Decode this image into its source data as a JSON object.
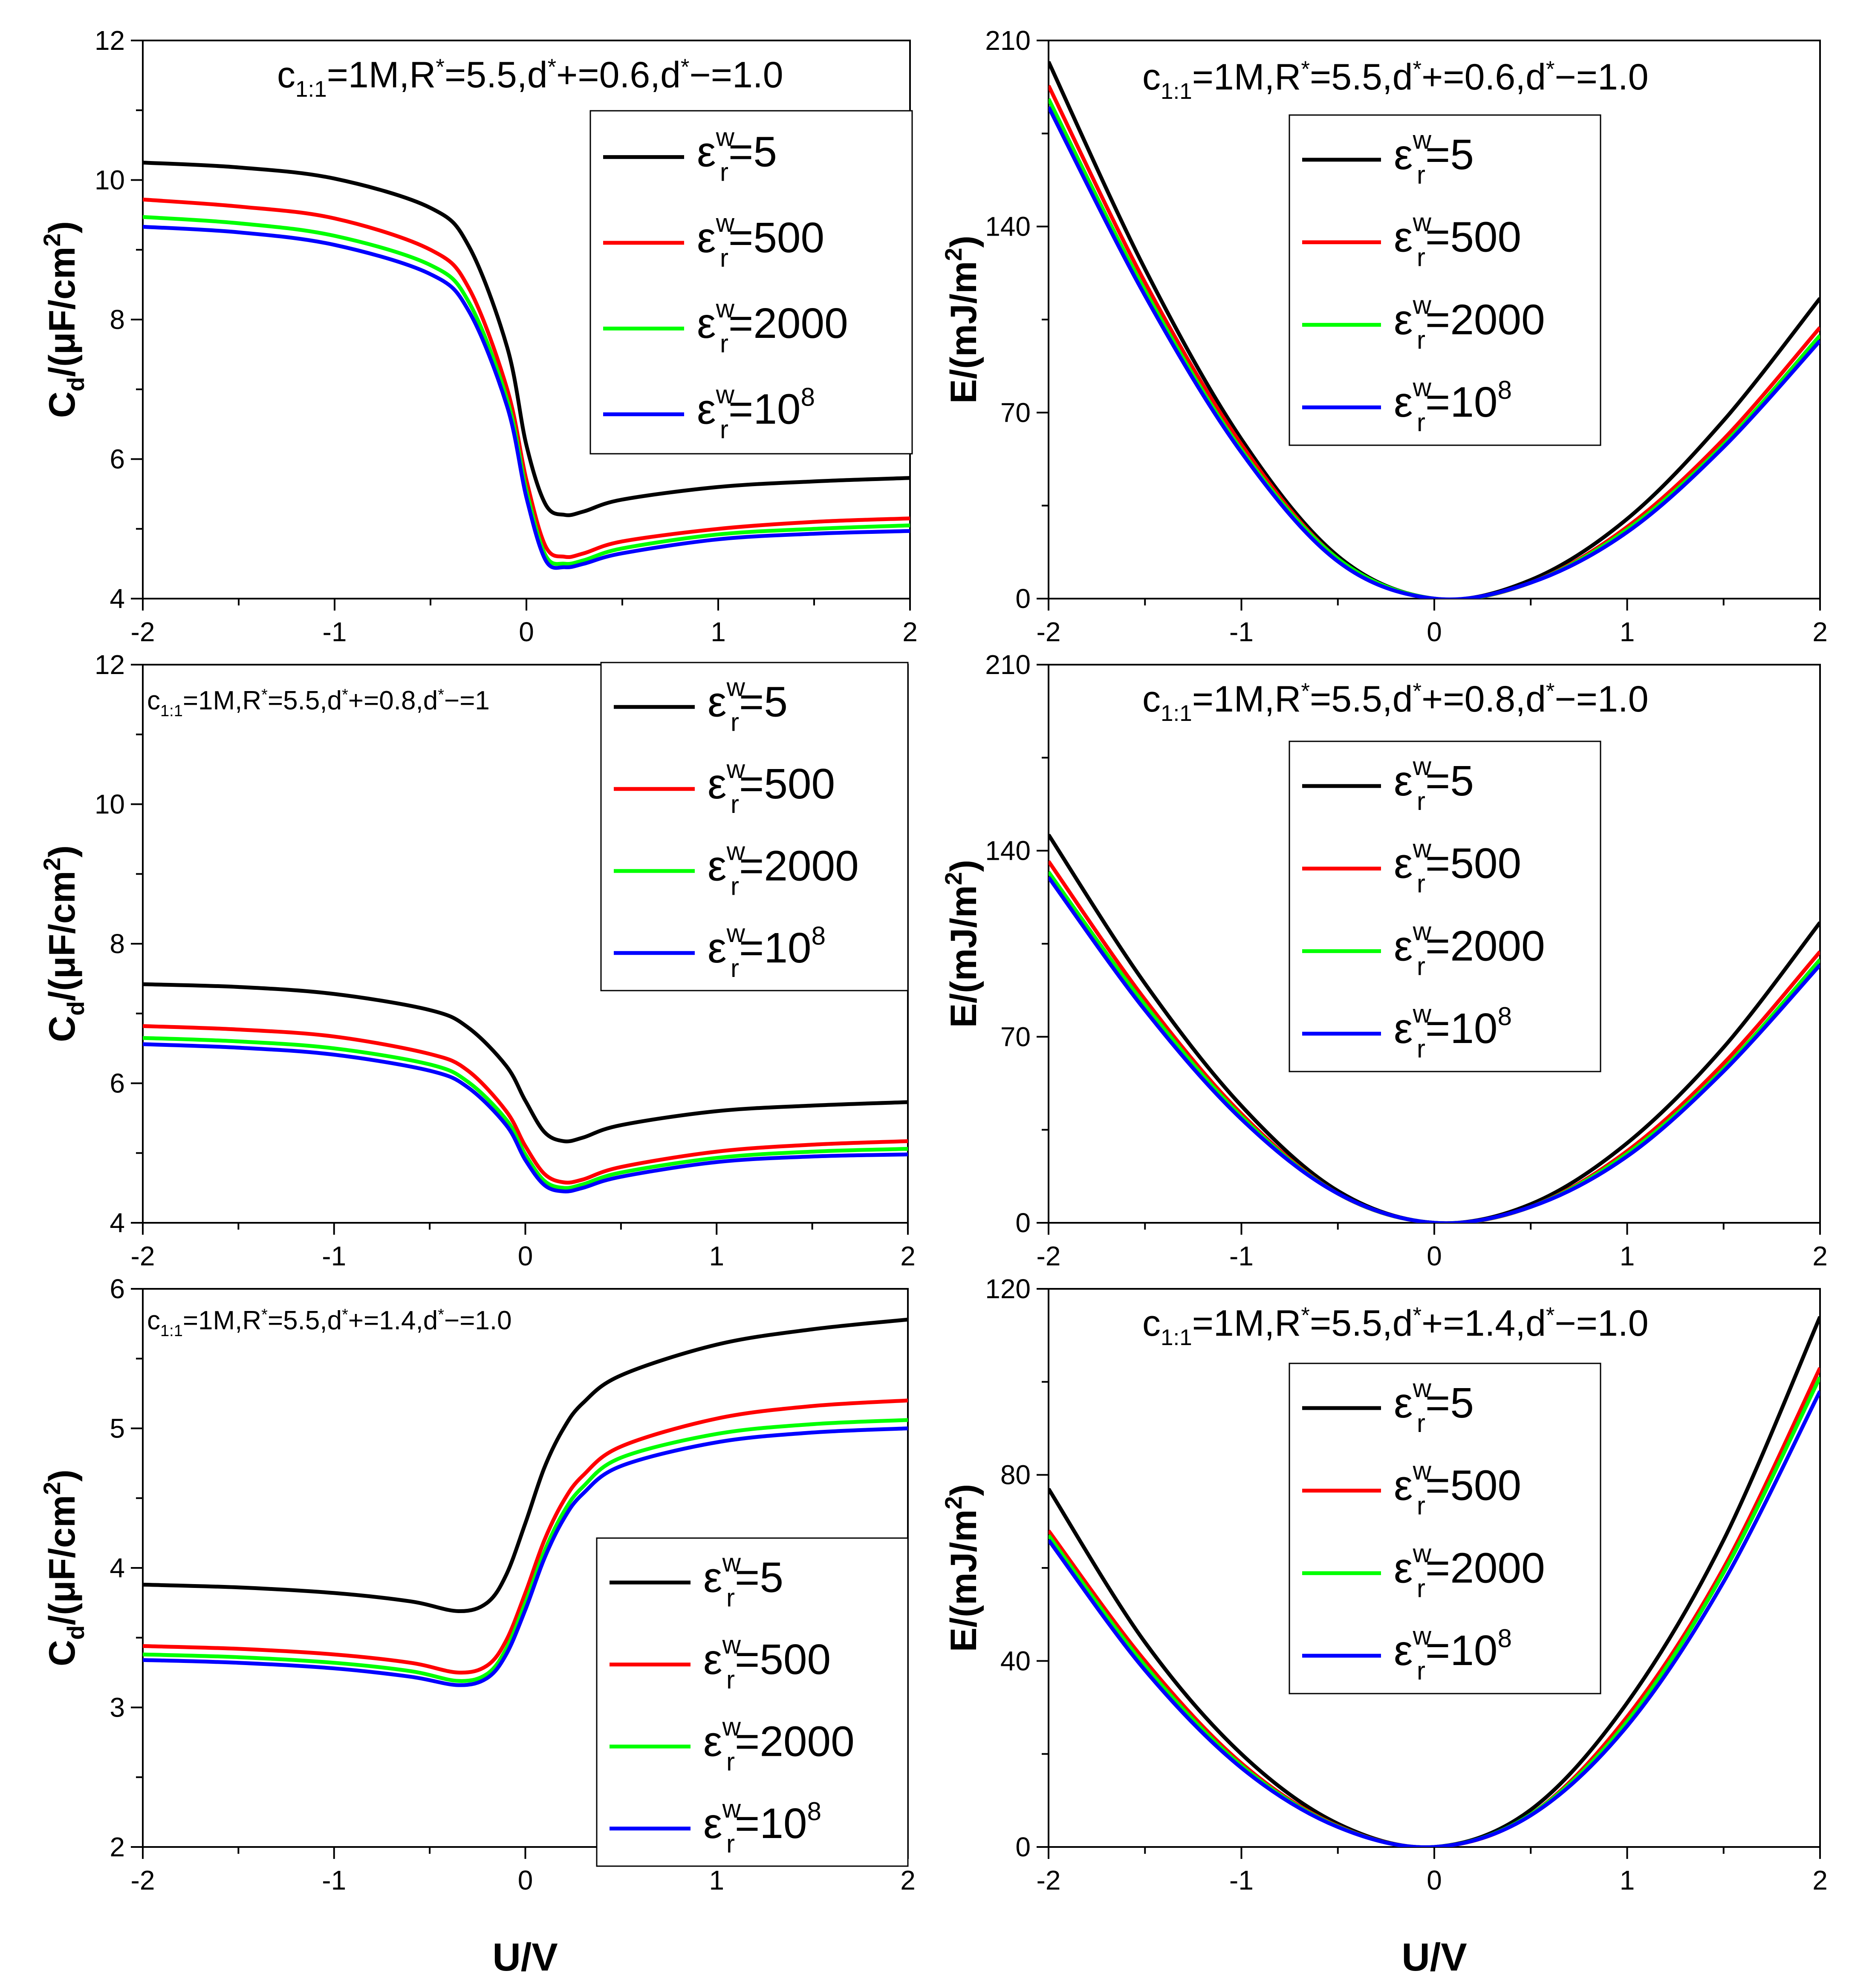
{
  "figure": {
    "shared_xlabel": "U/V",
    "legend_labels": [
      {
        "pre": "ε",
        "sup": "w",
        "sub": "r",
        "post": "=5"
      },
      {
        "pre": "ε",
        "sup": "w",
        "sub": "r",
        "post": "=500"
      },
      {
        "pre": "ε",
        "sup": "w",
        "sub": "r",
        "post": "=2000"
      },
      {
        "pre": "ε",
        "sup": "w",
        "sub": "r",
        "post": "=10",
        "exp": "8"
      }
    ],
    "series_colors": [
      "#000000",
      "#ff0000",
      "#00ff00",
      "#0000ff"
    ]
  },
  "chart_data": [
    {
      "type": "line",
      "panel": "top-left",
      "annotation": {
        "c": "c",
        "csub": "1:1",
        "a": "=1M,R",
        "b": "=5.5,d",
        "c2": "+=0.6,d",
        "d": "−=1.0"
      },
      "xlabel": "U/V",
      "ylabel_main": "C",
      "ylabel_sub": "d",
      "ylabel_unit": "/(μF/cm",
      "ylabel_exp": "2",
      "ylabel_close": ")",
      "xlim": [
        -2,
        2
      ],
      "ylim": [
        4,
        12
      ],
      "xticks": [
        -2,
        -1,
        0,
        1,
        2
      ],
      "yticks": [
        4,
        6,
        8,
        10,
        12
      ],
      "x": [
        -2.0,
        -1.5,
        -1.0,
        -0.5,
        -0.3,
        -0.1,
        0.0,
        0.1,
        0.2,
        0.3,
        0.5,
        1.0,
        1.5,
        2.0
      ],
      "series": [
        {
          "name": "5",
          "values": [
            10.25,
            10.18,
            10.02,
            9.6,
            9.05,
            7.6,
            6.2,
            5.35,
            5.2,
            5.25,
            5.42,
            5.6,
            5.68,
            5.73
          ]
        },
        {
          "name": "500",
          "values": [
            9.72,
            9.62,
            9.45,
            9.0,
            8.45,
            7.0,
            5.7,
            4.75,
            4.6,
            4.65,
            4.82,
            5.0,
            5.1,
            5.15
          ]
        },
        {
          "name": "2000",
          "values": [
            9.47,
            9.38,
            9.2,
            8.78,
            8.25,
            6.85,
            5.55,
            4.62,
            4.5,
            4.55,
            4.72,
            4.92,
            5.0,
            5.05
          ]
        },
        {
          "name": "10^8",
          "values": [
            9.33,
            9.25,
            9.07,
            8.65,
            8.12,
            6.75,
            5.45,
            4.55,
            4.45,
            4.5,
            4.65,
            4.85,
            4.93,
            4.97
          ]
        }
      ]
    },
    {
      "type": "line",
      "panel": "top-right",
      "annotation": {
        "c": "c",
        "csub": "1:1",
        "a": "=1M,R",
        "b": "=5.5,d",
        "c2": "+=0.6,d",
        "d": "−=1.0"
      },
      "xlabel": "U/V",
      "ylabel_main": "E",
      "ylabel_sub": "",
      "ylabel_unit": "/(mJ/m",
      "ylabel_exp": "2",
      "ylabel_close": ")",
      "xlim": [
        -2,
        2
      ],
      "ylim": [
        0,
        210
      ],
      "xticks": [
        -2,
        -1,
        0,
        1,
        2
      ],
      "yticks": [
        0,
        70,
        140,
        210
      ],
      "x": [
        -2.0,
        -1.5,
        -1.0,
        -0.5,
        0.0,
        0.5,
        1.0,
        1.5,
        2.0
      ],
      "series": [
        {
          "name": "5",
          "values": [
            202,
            124,
            60,
            16,
            0,
            7,
            30,
            67,
            113
          ]
        },
        {
          "name": "500",
          "values": [
            193,
            119,
            58,
            15,
            0,
            6,
            27,
            60,
            102
          ]
        },
        {
          "name": "2000",
          "values": [
            188,
            116,
            56,
            15,
            0,
            6,
            26,
            58,
            99
          ]
        },
        {
          "name": "10^8",
          "values": [
            185,
            114,
            55,
            14,
            0,
            6,
            25,
            57,
            97
          ]
        }
      ]
    },
    {
      "type": "line",
      "panel": "middle-left",
      "annotation": {
        "c": "c",
        "csub": "1:1",
        "a": "=1M,R",
        "b": "=5.5,d",
        "c2": "+=0.8,d",
        "d": "−=1"
      },
      "xlabel": "U/V",
      "ylabel_main": "C",
      "ylabel_sub": "d",
      "ylabel_unit": "/(μF/cm",
      "ylabel_exp": "2",
      "ylabel_close": ")",
      "xlim": [
        -2,
        2
      ],
      "ylim": [
        4,
        12
      ],
      "xticks": [
        -2,
        -1,
        0,
        1,
        2
      ],
      "yticks": [
        4,
        6,
        8,
        10,
        12
      ],
      "x": [
        -2.0,
        -1.5,
        -1.0,
        -0.5,
        -0.3,
        -0.1,
        0.0,
        0.1,
        0.2,
        0.3,
        0.5,
        1.0,
        1.5,
        2.0
      ],
      "series": [
        {
          "name": "5",
          "values": [
            7.42,
            7.38,
            7.28,
            7.05,
            6.8,
            6.25,
            5.75,
            5.3,
            5.17,
            5.22,
            5.4,
            5.6,
            5.68,
            5.73
          ]
        },
        {
          "name": "500",
          "values": [
            6.82,
            6.77,
            6.67,
            6.42,
            6.18,
            5.6,
            5.1,
            4.7,
            4.58,
            4.62,
            4.8,
            5.02,
            5.12,
            5.17
          ]
        },
        {
          "name": "2000",
          "values": [
            6.65,
            6.6,
            6.5,
            6.27,
            6.02,
            5.48,
            4.98,
            4.6,
            4.5,
            4.55,
            4.72,
            4.93,
            5.02,
            5.06
          ]
        },
        {
          "name": "10^8",
          "values": [
            6.56,
            6.51,
            6.41,
            6.18,
            5.94,
            5.4,
            4.9,
            4.54,
            4.45,
            4.5,
            4.66,
            4.87,
            4.95,
            4.98
          ]
        }
      ]
    },
    {
      "type": "line",
      "panel": "middle-right",
      "annotation": {
        "c": "c",
        "csub": "1:1",
        "a": "=1M,R",
        "b": "=5.5,d",
        "c2": "+=0.8,d",
        "d": "−=1.0"
      },
      "xlabel": "U/V",
      "ylabel_main": "E",
      "ylabel_sub": "",
      "ylabel_unit": "/(mJ/m",
      "ylabel_exp": "2",
      "ylabel_close": ")",
      "xlim": [
        -2,
        2
      ],
      "ylim": [
        0,
        210
      ],
      "xticks": [
        -2,
        -1,
        0,
        1,
        2
      ],
      "yticks": [
        0,
        70,
        140,
        210
      ],
      "x": [
        -2.0,
        -1.5,
        -1.0,
        -0.5,
        0.0,
        0.5,
        1.0,
        1.5,
        2.0
      ],
      "series": [
        {
          "name": "5",
          "values": [
            146,
            90,
            44,
            12,
            0,
            7,
            30,
            66,
            113
          ]
        },
        {
          "name": "500",
          "values": [
            136,
            84,
            41,
            11,
            0,
            6,
            27,
            60,
            102
          ]
        },
        {
          "name": "2000",
          "values": [
            132,
            82,
            40,
            11,
            0,
            6,
            26,
            58,
            99
          ]
        },
        {
          "name": "10^8",
          "values": [
            130,
            80,
            39,
            11,
            0,
            6,
            25,
            57,
            97
          ]
        }
      ]
    },
    {
      "type": "line",
      "panel": "bottom-left",
      "annotation": {
        "c": "c",
        "csub": "1:1",
        "a": "=1M,R",
        "b": "=5.5,d",
        "c2": "+=1.4,d",
        "d": "−=1.0"
      },
      "xlabel": "U/V",
      "ylabel_main": "C",
      "ylabel_sub": "d",
      "ylabel_unit": "/(μF/cm",
      "ylabel_exp": "2",
      "ylabel_close": ")",
      "xlim": [
        -2,
        2
      ],
      "ylim": [
        2,
        6
      ],
      "xticks": [
        -2,
        -1,
        0,
        1,
        2
      ],
      "yticks": [
        2,
        3,
        4,
        5,
        6
      ],
      "x": [
        -2.0,
        -1.5,
        -1.0,
        -0.6,
        -0.35,
        -0.2,
        -0.1,
        0.0,
        0.1,
        0.2,
        0.3,
        0.5,
        1.0,
        1.5,
        2.0
      ],
      "series": [
        {
          "name": "5",
          "values": [
            3.88,
            3.86,
            3.82,
            3.76,
            3.69,
            3.75,
            3.95,
            4.32,
            4.72,
            5.0,
            5.18,
            5.38,
            5.6,
            5.71,
            5.78
          ]
        },
        {
          "name": "500",
          "values": [
            3.44,
            3.42,
            3.38,
            3.32,
            3.25,
            3.3,
            3.48,
            3.82,
            4.2,
            4.48,
            4.66,
            4.87,
            5.07,
            5.16,
            5.2
          ]
        },
        {
          "name": "2000",
          "values": [
            3.38,
            3.36,
            3.32,
            3.26,
            3.19,
            3.24,
            3.42,
            3.75,
            4.12,
            4.4,
            4.58,
            4.79,
            4.96,
            5.03,
            5.06
          ]
        },
        {
          "name": "10^8",
          "values": [
            3.34,
            3.32,
            3.28,
            3.22,
            3.16,
            3.21,
            3.38,
            3.7,
            4.07,
            4.35,
            4.53,
            4.73,
            4.9,
            4.97,
            5.0
          ]
        }
      ]
    },
    {
      "type": "line",
      "panel": "bottom-right",
      "annotation": {
        "c": "c",
        "csub": "1:1",
        "a": "=1M,R",
        "b": "=5.5,d",
        "c2": "+=1.4,d",
        "d": "−=1.0"
      },
      "xlabel": "U/V",
      "ylabel_main": "E",
      "ylabel_sub": "",
      "ylabel_unit": "/(mJ/m",
      "ylabel_exp": "2",
      "ylabel_close": ")",
      "xlim": [
        -2,
        2
      ],
      "ylim": [
        0,
        120
      ],
      "xticks": [
        -2,
        -1,
        0,
        1,
        2
      ],
      "yticks": [
        0,
        40,
        80,
        120
      ],
      "x": [
        -2.0,
        -1.5,
        -1.0,
        -0.5,
        0.0,
        0.5,
        1.0,
        1.5,
        2.0
      ],
      "series": [
        {
          "name": "5",
          "values": [
            77,
            44,
            20,
            5,
            0,
            8,
            31,
            66,
            114
          ]
        },
        {
          "name": "500",
          "values": [
            68,
            40,
            18,
            4.5,
            0,
            7,
            28,
            60,
            103
          ]
        },
        {
          "name": "2000",
          "values": [
            67,
            39,
            17.5,
            4.4,
            0,
            7,
            27,
            59,
            101
          ]
        },
        {
          "name": "10^8",
          "values": [
            66,
            38,
            17,
            4.3,
            0,
            6.8,
            26,
            57,
            98
          ]
        }
      ]
    }
  ]
}
